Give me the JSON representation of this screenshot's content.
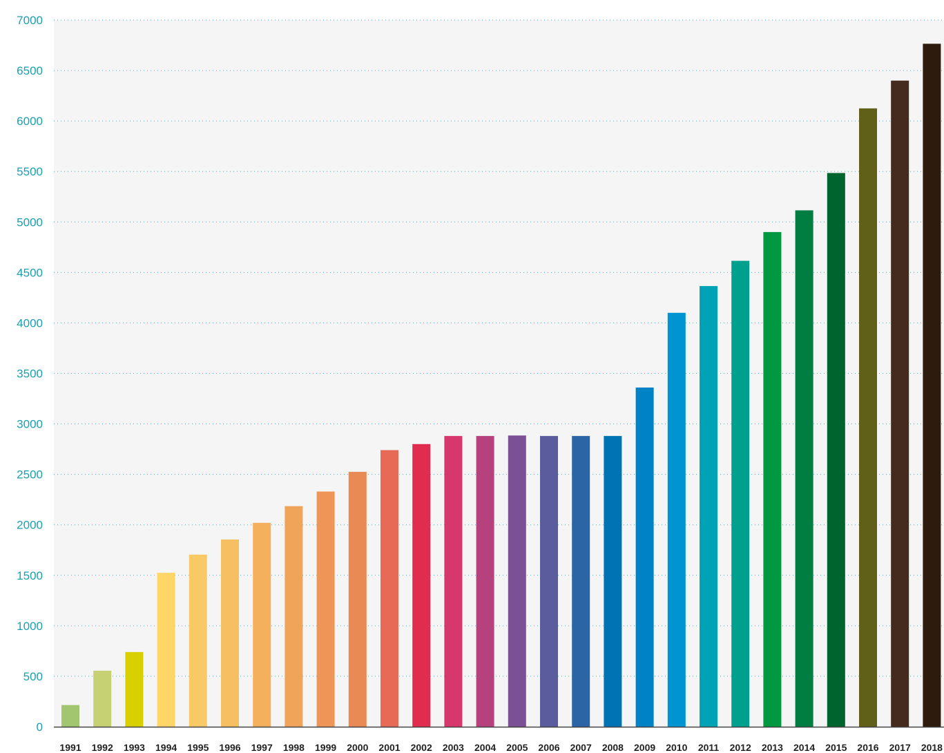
{
  "chart_data": {
    "type": "bar",
    "title": "",
    "xlabel": "",
    "ylabel": "",
    "ylim": [
      0,
      7000
    ],
    "yticks": [
      0,
      500,
      1000,
      1500,
      2000,
      2500,
      3000,
      3500,
      4000,
      4500,
      5000,
      5500,
      6000,
      6500,
      7000
    ],
    "grid": true,
    "legend": "none",
    "categories": [
      "1991",
      "1992",
      "1993",
      "1994",
      "1995",
      "1996",
      "1997",
      "1998",
      "1999",
      "2000",
      "2001",
      "2002",
      "2003",
      "2004",
      "2005",
      "2006",
      "2007",
      "2008",
      "2009",
      "2010",
      "2011",
      "2012",
      "2013",
      "2014",
      "2015",
      "2016",
      "2017",
      "2018"
    ],
    "values": [
      215,
      555,
      740,
      1525,
      1705,
      1855,
      2020,
      2185,
      2330,
      2525,
      2740,
      2800,
      2880,
      2880,
      2885,
      2880,
      2880,
      2880,
      3360,
      4100,
      4365,
      4615,
      4900,
      5115,
      5485,
      6125,
      6400,
      6765
    ],
    "colors": [
      "#a1c66f",
      "#c5d173",
      "#d9d000",
      "#fdd667",
      "#f9c965",
      "#f6bf62",
      "#f4b05c",
      "#f0a459",
      "#ee9557",
      "#e98a54",
      "#e76a56",
      "#e02c4e",
      "#d6386e",
      "#b6427d",
      "#7b5095",
      "#5a5c9d",
      "#2c65a6",
      "#0073b5",
      "#0083c6",
      "#0094d2",
      "#00a3b5",
      "#00a08f",
      "#00993f",
      "#007d41",
      "#00642f",
      "#606018",
      "#442b1d",
      "#2d1c0e"
    ],
    "gridline_color": "#4ab1c5",
    "axis_tick_color": "#1a9fb0",
    "plot_background": "#f4f5f4"
  }
}
